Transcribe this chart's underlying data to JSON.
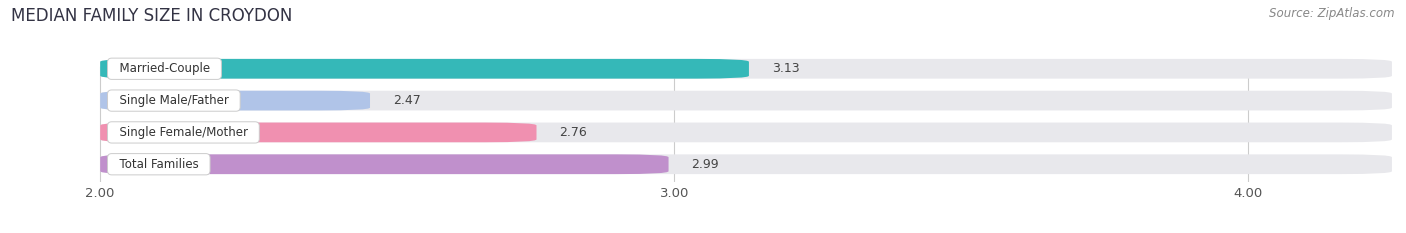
{
  "title": "MEDIAN FAMILY SIZE IN CROYDON",
  "source": "Source: ZipAtlas.com",
  "categories": [
    "Married-Couple",
    "Single Male/Father",
    "Single Female/Mother",
    "Total Families"
  ],
  "values": [
    3.13,
    2.47,
    2.76,
    2.99
  ],
  "bar_colors": [
    "#35b8b8",
    "#b0c4e8",
    "#f090b0",
    "#c090cc"
  ],
  "pill_bg_color": "#e8e8ec",
  "label_bg_color": "#ffffff",
  "label_border_color": "#cccccc",
  "xlim": [
    1.85,
    4.25
  ],
  "xmin": 2.0,
  "xticks": [
    2.0,
    3.0,
    4.0
  ],
  "xtick_labels": [
    "2.00",
    "3.00",
    "4.00"
  ],
  "background_color": "#ffffff",
  "bar_height": 0.62,
  "title_fontsize": 12,
  "source_fontsize": 8.5,
  "tick_fontsize": 9.5,
  "label_fontsize": 8.5,
  "value_fontsize": 9
}
